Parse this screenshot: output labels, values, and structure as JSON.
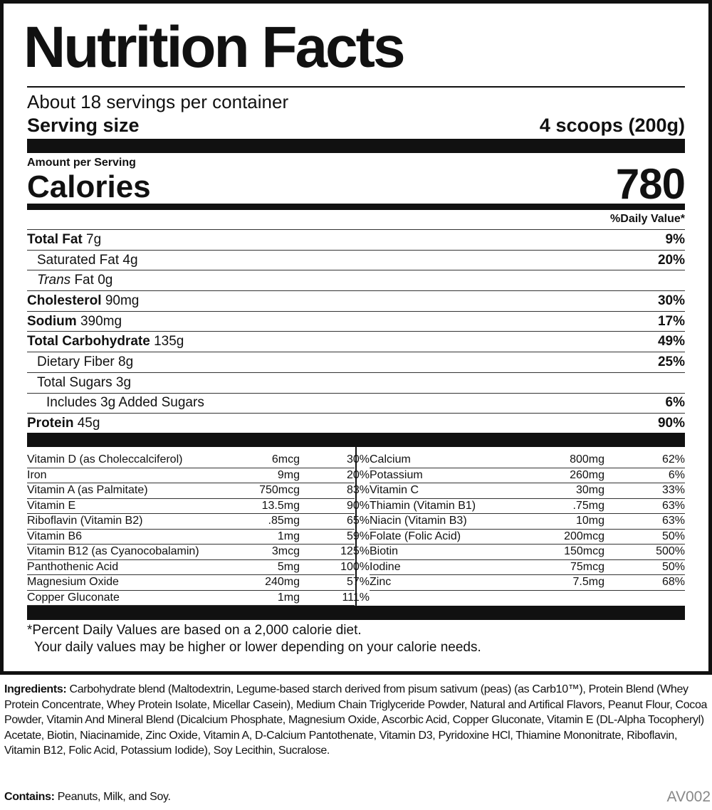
{
  "title": "Nutrition Facts",
  "servings_per_container": "About 18 servings per container",
  "serving_size": {
    "label": "Serving size",
    "value": "4 scoops (200g)"
  },
  "amount_per_serving": "Amount per Serving",
  "calories": {
    "label": "Calories",
    "value": "780"
  },
  "daily_value_header": "%Daily Value*",
  "nutrients": [
    {
      "name": "Total Fat",
      "amount": "7g",
      "dv": "9%",
      "bold": true,
      "indent": 0
    },
    {
      "name": "Saturated Fat",
      "amount": "4g",
      "dv": "20%",
      "bold": false,
      "indent": 1
    },
    {
      "name": "Trans",
      "name_suffix": "Fat",
      "amount": "0g",
      "dv": "",
      "bold": false,
      "indent": 1,
      "italic": true
    },
    {
      "name": "Cholesterol",
      "amount": "90mg",
      "dv": "30%",
      "bold": true,
      "indent": 0
    },
    {
      "name": "Sodium",
      "amount": "390mg",
      "dv": "17%",
      "bold": true,
      "indent": 0
    },
    {
      "name": "Total Carbohydrate",
      "amount": "135g",
      "dv": "49%",
      "bold": true,
      "indent": 0
    },
    {
      "name": "Dietary Fiber",
      "amount": "8g",
      "dv": "25%",
      "bold": false,
      "indent": 1
    },
    {
      "name": "Total Sugars",
      "amount": "3g",
      "dv": "",
      "bold": false,
      "indent": 1
    },
    {
      "name": "Includes 3g Added Sugars",
      "amount": "",
      "dv": "6%",
      "bold": false,
      "indent": 2
    },
    {
      "name": "Protein",
      "amount": "45g",
      "dv": "90%",
      "bold": true,
      "indent": 0
    }
  ],
  "vitamins_left": [
    {
      "name": "Vitamin D (as Choleccalciferol)",
      "amount": "6mcg",
      "dv": "30%"
    },
    {
      "name": "Iron",
      "amount": "9mg",
      "dv": "20%"
    },
    {
      "name": "Vitamin A (as Palmitate)",
      "amount": "750mcg",
      "dv": "83%"
    },
    {
      "name": "Vitamin E",
      "amount": "13.5mg",
      "dv": "90%"
    },
    {
      "name": "Riboflavin (Vitamin B2)",
      "amount": ".85mg",
      "dv": "65%"
    },
    {
      "name": "Vitamin B6",
      "amount": "1mg",
      "dv": "59%"
    },
    {
      "name": "Vitamin B12 (as Cyanocobalamin)",
      "amount": "3mcg",
      "dv": "125%"
    },
    {
      "name": "Panthothenic Acid",
      "amount": "5mg",
      "dv": "100%"
    },
    {
      "name": "Magnesium Oxide",
      "amount": "240mg",
      "dv": "57%"
    },
    {
      "name": "Copper Gluconate",
      "amount": "1mg",
      "dv": "111%"
    }
  ],
  "vitamins_right": [
    {
      "name": "Calcium",
      "amount": "800mg",
      "dv": "62%"
    },
    {
      "name": "Potassium",
      "amount": "260mg",
      "dv": "6%"
    },
    {
      "name": "Vitamin C",
      "amount": "30mg",
      "dv": "33%"
    },
    {
      "name": "Thiamin (Vitamin B1)",
      "amount": ".75mg",
      "dv": "63%"
    },
    {
      "name": "Niacin (Vitamin B3)",
      "amount": "10mg",
      "dv": "63%"
    },
    {
      "name": "Folate (Folic Acid)",
      "amount": "200mcg",
      "dv": "50%"
    },
    {
      "name": "Biotin",
      "amount": "150mcg",
      "dv": "500%"
    },
    {
      "name": "Iodine",
      "amount": "75mcg",
      "dv": "50%"
    },
    {
      "name": "Zinc",
      "amount": "7.5mg",
      "dv": "68%"
    }
  ],
  "footnote": {
    "line1": "*Percent Daily Values are based on a 2,000 calorie diet.",
    "line2": "Your daily values may be higher or lower depending on your calorie needs."
  },
  "ingredients": {
    "label": "Ingredients:",
    "text": "Carbohydrate blend (Maltodextrin, Legume-based starch derived from pisum sativum (peas) (as Carb10™), Protein Blend (Whey Protein Concentrate, Whey Protein Isolate, Micellar Casein), Medium Chain Triglyceride Powder, Natural and Artifical Flavors, Peanut Flour, Cocoa Powder, Vitamin And Mineral Blend (Dicalcium Phosphate, Magnesium Oxide, Ascorbic Acid, Copper Gluconate, Vitamin E (DL-Alpha Tocopheryl) Acetate, Biotin, Niacinamide, Zinc Oxide, Vitamin A, D-Calcium Pantothenate, Vitamin D3, Pyridoxine HCl, Thiamine Mononitrate, Riboflavin, Vitamin B12, Folic Acid, Potassium Iodide), Soy Lecithin, Sucralose."
  },
  "contains": {
    "label": "Contains:",
    "text": "Peanuts, Milk, and Soy."
  },
  "product_code": "AV002"
}
